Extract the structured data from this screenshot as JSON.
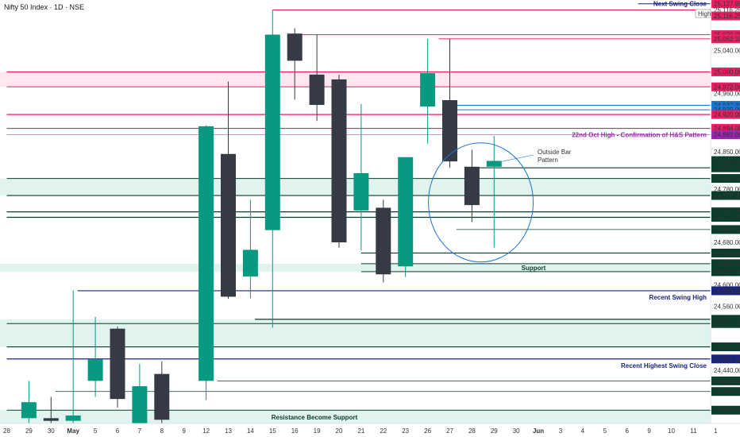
{
  "header": {
    "title": "Nifty 50 Index · 1D · NSE"
  },
  "colors": {
    "up": "#089981",
    "down": "#363a45",
    "red": "#e91e63",
    "navy": "#1a237e",
    "green": "#0b3d2c",
    "blue": "#1976d2",
    "purple": "#9c27b0",
    "zone_green": "#d6efe9",
    "zone_pink": "#fbe0e8"
  },
  "chart_data": {
    "type": "candlestick",
    "ylim": [
      24340,
      25135
    ],
    "x_ticks": [
      "28",
      "29",
      "30",
      "May",
      "5",
      "6",
      "7",
      "8",
      "9",
      "12",
      "13",
      "14",
      "15",
      "16",
      "19",
      "20",
      "21",
      "22",
      "23",
      "26",
      "27",
      "28",
      "29",
      "30",
      "Jun",
      "3",
      "4",
      "5",
      "6",
      "9",
      "10",
      "11",
      "1"
    ],
    "candles": [
      {
        "i": 1,
        "o": 24350,
        "h": 24420,
        "l": 24300,
        "c": 24380
      },
      {
        "i": 2,
        "o": 24350,
        "h": 24390,
        "l": 24310,
        "c": 24345
      },
      {
        "i": 3,
        "o": 24345,
        "h": 24590,
        "l": 24328,
        "c": 24355
      },
      {
        "i": 4,
        "o": 24420,
        "h": 24540,
        "l": 24390,
        "c": 24460
      },
      {
        "i": 5,
        "o": 24518,
        "h": 24522,
        "l": 24370,
        "c": 24386
      },
      {
        "i": 6,
        "o": 24340,
        "h": 24452,
        "l": 24315,
        "c": 24410
      },
      {
        "i": 7,
        "o": 24433,
        "h": 24457,
        "l": 24305,
        "c": 24347
      },
      {
        "i": 9,
        "o": 24420,
        "h": 24900,
        "l": 24384,
        "c": 24898
      },
      {
        "i": 10,
        "o": 24846,
        "h": 24982,
        "l": 24574,
        "c": 24578
      },
      {
        "i": 11,
        "o": 24616,
        "h": 24760,
        "l": 24575,
        "c": 24666
      },
      {
        "i": 12,
        "o": 24703,
        "h": 25116,
        "l": 24520,
        "c": 25070
      },
      {
        "i": 13,
        "o": 25072,
        "h": 25082,
        "l": 24948,
        "c": 25021
      },
      {
        "i": 14,
        "o": 24995,
        "h": 25070,
        "l": 24908,
        "c": 24938
      },
      {
        "i": 15,
        "o": 24986,
        "h": 24995,
        "l": 24670,
        "c": 24680
      },
      {
        "i": 16,
        "o": 24740,
        "h": 24940,
        "l": 24665,
        "c": 24810
      },
      {
        "i": 17,
        "o": 24745,
        "h": 24760,
        "l": 24605,
        "c": 24620
      },
      {
        "i": 18,
        "o": 24635,
        "h": 24835,
        "l": 24615,
        "c": 24840
      },
      {
        "i": 19,
        "o": 24935,
        "h": 25062,
        "l": 24865,
        "c": 24998
      },
      {
        "i": 20,
        "o": 24947,
        "h": 25062,
        "l": 24820,
        "c": 24832
      },
      {
        "i": 21,
        "o": 24822,
        "h": 24854,
        "l": 24718,
        "c": 24750
      },
      {
        "i": 22,
        "o": 24822,
        "h": 24880,
        "l": 24670,
        "c": 24833
      }
    ],
    "price_labels": [
      {
        "v": 25127.95,
        "t": "25,127.95",
        "kind": "red"
      },
      {
        "v": 25116.25,
        "t": "25,116.25",
        "kind": "plain"
      },
      {
        "v": 25105.0,
        "t": "25,116.25",
        "kind": "red"
      },
      {
        "v": 25070.0,
        "t": "25,070.00",
        "kind": "red"
      },
      {
        "v": 25062.1,
        "t": "25,062.10",
        "kind": "red"
      },
      {
        "v": 25040.0,
        "t": "25,040.00",
        "kind": "plain"
      },
      {
        "v": 25000.0,
        "t": "25,000.00",
        "kind": "red"
      },
      {
        "v": 24972.0,
        "t": "24,972.00",
        "kind": "red"
      },
      {
        "v": 24960.0,
        "t": "24,960.00",
        "kind": "plain"
      },
      {
        "v": 24937.3,
        "t": "24,937.30",
        "kind": "blue"
      },
      {
        "v": 24929.0,
        "t": "24,929.00",
        "kind": "blue"
      },
      {
        "v": 24920.0,
        "t": "24,920.00",
        "kind": "red"
      },
      {
        "v": 24894.0,
        "t": "24,894.00",
        "kind": "red"
      },
      {
        "v": 24882.0,
        "t": "24,882.00",
        "kind": "purple"
      },
      {
        "v": 24850.0,
        "t": "24,850.00",
        "kind": "plain"
      },
      {
        "v": 24833.6,
        "t": "24,833.60",
        "kind": "green"
      },
      {
        "v": 24820.0,
        "t": "24,820.00",
        "kind": "green"
      },
      {
        "v": 24800.0,
        "t": "24,800.00",
        "kind": "green"
      },
      {
        "v": 24780.0,
        "t": "24,780.00",
        "kind": "plain"
      },
      {
        "v": 24768.0,
        "t": "24,768.00",
        "kind": "green"
      },
      {
        "v": 24737.3,
        "t": "24,737.30",
        "kind": "green"
      },
      {
        "v": 24727.05,
        "t": "24,727.05",
        "kind": "green"
      },
      {
        "v": 24704.1,
        "t": "24,704.10",
        "kind": "green"
      },
      {
        "v": 24680.0,
        "t": "24,680.00",
        "kind": "plain"
      },
      {
        "v": 24660.0,
        "t": "24,660.00",
        "kind": "green"
      },
      {
        "v": 24640.0,
        "t": "24,640.00",
        "kind": "green"
      },
      {
        "v": 24625.0,
        "t": "24,625.00",
        "kind": "green"
      },
      {
        "v": 24600.0,
        "t": "24,600.00",
        "kind": "plain"
      },
      {
        "v": 24589.15,
        "t": "24,589.15",
        "kind": "navy"
      },
      {
        "v": 24560.0,
        "t": "24,560.00",
        "kind": "plain"
      },
      {
        "v": 24535.55,
        "t": "24,535.55",
        "kind": "green"
      },
      {
        "v": 24527.65,
        "t": "24,527.65",
        "kind": "green"
      },
      {
        "v": 24483.85,
        "t": "24,483.85",
        "kind": "green"
      },
      {
        "v": 24461.15,
        "t": "24,461.15",
        "kind": "navy"
      },
      {
        "v": 24440.0,
        "t": "24,440.00",
        "kind": "plain"
      },
      {
        "v": 24420.0,
        "t": "24,420.00",
        "kind": "green"
      },
      {
        "v": 24400.0,
        "t": "24,400.00",
        "kind": "green"
      },
      {
        "v": 24365.0,
        "t": "24,365.00",
        "kind": "green"
      }
    ],
    "zones": [
      {
        "y1": 25000,
        "y2": 24972,
        "kind": "zone_pink"
      },
      {
        "y1": 24800,
        "y2": 24768,
        "kind": "zone_green"
      },
      {
        "y1": 24640,
        "y2": 24625,
        "kind": "zone_green"
      },
      {
        "y1": 24535.55,
        "y2": 24483.85,
        "kind": "zone_green"
      },
      {
        "y1": 24365,
        "y2": 24340,
        "kind": "zone_green"
      }
    ],
    "levels": [
      {
        "v": 25127.95,
        "x1": 28.5,
        "kind": "navy",
        "w": 1
      },
      {
        "v": 25116.25,
        "x1": 12,
        "kind": "red",
        "w": 1.2
      },
      {
        "v": 25070.0,
        "x1": 13,
        "kind": "red",
        "w": 1
      },
      {
        "v": 25062.1,
        "x1": 19.5,
        "kind": "red",
        "w": 1
      },
      {
        "v": 25000.0,
        "x1": 0,
        "kind": "red",
        "w": 1.2
      },
      {
        "v": 24972.0,
        "x1": 0,
        "kind": "red",
        "w": 1
      },
      {
        "v": 24937.3,
        "x1": 20,
        "kind": "blue",
        "w": 1
      },
      {
        "v": 24929.0,
        "x1": 20,
        "kind": "blue",
        "w": 1
      },
      {
        "v": 24920.0,
        "x1": 0,
        "kind": "red",
        "w": 1.2
      },
      {
        "v": 24894.0,
        "x1": 0,
        "kind": "red",
        "w": 1.2
      },
      {
        "v": 24882.0,
        "x1": 0,
        "kind": "purple",
        "w": 0.6
      },
      {
        "v": 24820.0,
        "x1": 20.8,
        "kind": "green",
        "w": 1.2
      },
      {
        "v": 24800.0,
        "x1": 0,
        "kind": "green",
        "w": 1
      },
      {
        "v": 24768.0,
        "x1": 0,
        "kind": "green",
        "w": 1.2
      },
      {
        "v": 24737.3,
        "x1": 0,
        "kind": "green",
        "w": 1.2
      },
      {
        "v": 24727.05,
        "x1": 0,
        "kind": "green",
        "w": 1.2
      },
      {
        "v": 24704.1,
        "x1": 20.3,
        "kind": "green",
        "w": 0.8
      },
      {
        "v": 24660.0,
        "x1": 16,
        "kind": "green",
        "w": 1.2
      },
      {
        "v": 24640.0,
        "x1": 16,
        "kind": "green",
        "w": 1
      },
      {
        "v": 24625.0,
        "x1": 16,
        "kind": "green",
        "w": 1
      },
      {
        "v": 24589.15,
        "x1": 3.2,
        "kind": "navy",
        "w": 1.2
      },
      {
        "v": 24535.55,
        "x1": 11.2,
        "kind": "green",
        "w": 1.2
      },
      {
        "v": 24527.65,
        "x1": 0,
        "kind": "green",
        "w": 1
      },
      {
        "v": 24483.85,
        "x1": 0,
        "kind": "green",
        "w": 1.2
      },
      {
        "v": 24461.15,
        "x1": 0,
        "kind": "navy",
        "w": 1.2
      },
      {
        "v": 24420.0,
        "x1": 9.5,
        "kind": "green",
        "w": 0.8
      },
      {
        "v": 24400.0,
        "x1": 2.2,
        "kind": "green",
        "w": 0.8
      },
      {
        "v": 24365.0,
        "x1": 0,
        "kind": "green",
        "w": 1
      }
    ],
    "annotations": [
      {
        "text": "Next Swing Close",
        "v": 25127.95,
        "kind": "navy"
      },
      {
        "text": "22nd Oct High - Confirmation of H&S Pattern",
        "v": 24882.0,
        "kind": "purple"
      },
      {
        "text": "Support",
        "v": 24632,
        "kind": "green"
      },
      {
        "text": "Recent Swing High",
        "v": 24577,
        "kind": "navy"
      },
      {
        "text": "Recent Highest Swing Close",
        "v": 24449,
        "kind": "navy"
      },
      {
        "text": "Resistance Become Support",
        "v": 24352,
        "kind": "green"
      }
    ],
    "callout": {
      "line1": "Outside Bar",
      "line2": "Pattern"
    },
    "high_tag": "High"
  }
}
